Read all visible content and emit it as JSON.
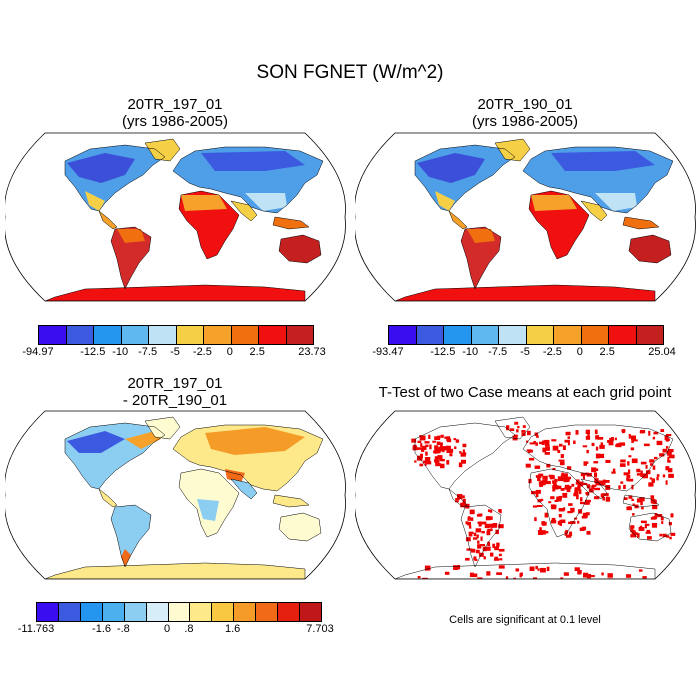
{
  "main_title": "SON FGNET (W/m^2)",
  "panels": [
    {
      "title_line1": "20TR_197_01",
      "title_line2": "(yrs 1986-2005)"
    },
    {
      "title_line1": "20TR_190_01",
      "title_line2": "(yrs 1986-2005)"
    },
    {
      "title_line1": "20TR_197_01",
      "title_line2": "- 20TR_190_01"
    },
    {
      "title_line1": "T-Test of two Case means at each grid point",
      "title_line2": ""
    }
  ],
  "colorbars": [
    {
      "colors": [
        "#3a0df0",
        "#3b5ae0",
        "#2596f0",
        "#5fb8ee",
        "#bfe3f5",
        "#f5cf45",
        "#f5a12a",
        "#f07010",
        "#f01010",
        "#c42020"
      ],
      "labels": [
        "-94.97",
        "-12.5",
        "-10",
        "-7.5",
        "-5",
        "-2.5",
        "0",
        "2.5",
        "23.73"
      ]
    },
    {
      "colors": [
        "#3a0df0",
        "#3b5ae0",
        "#2596f0",
        "#5fb8ee",
        "#bfe3f5",
        "#f5cf45",
        "#f5a12a",
        "#f07010",
        "#f01010",
        "#c42020"
      ],
      "labels": [
        "-93.47",
        "-12.5",
        "-10",
        "-7.5",
        "-5",
        "-2.5",
        "0",
        "2.5",
        "25.04"
      ]
    },
    {
      "colors": [
        "#3a0df0",
        "#3b5ae0",
        "#2596f0",
        "#4cb0ef",
        "#8ccdf2",
        "#d7edf8",
        "#fffbd0",
        "#fde88a",
        "#f9c842",
        "#f59b28",
        "#f06a18",
        "#e52010",
        "#c01818"
      ],
      "labels": [
        "-11.763",
        "-1.6",
        "-.8",
        "0",
        ".8",
        "1.6",
        "7.703"
      ]
    }
  ],
  "note": "Cells are significant at 0.1 level"
}
